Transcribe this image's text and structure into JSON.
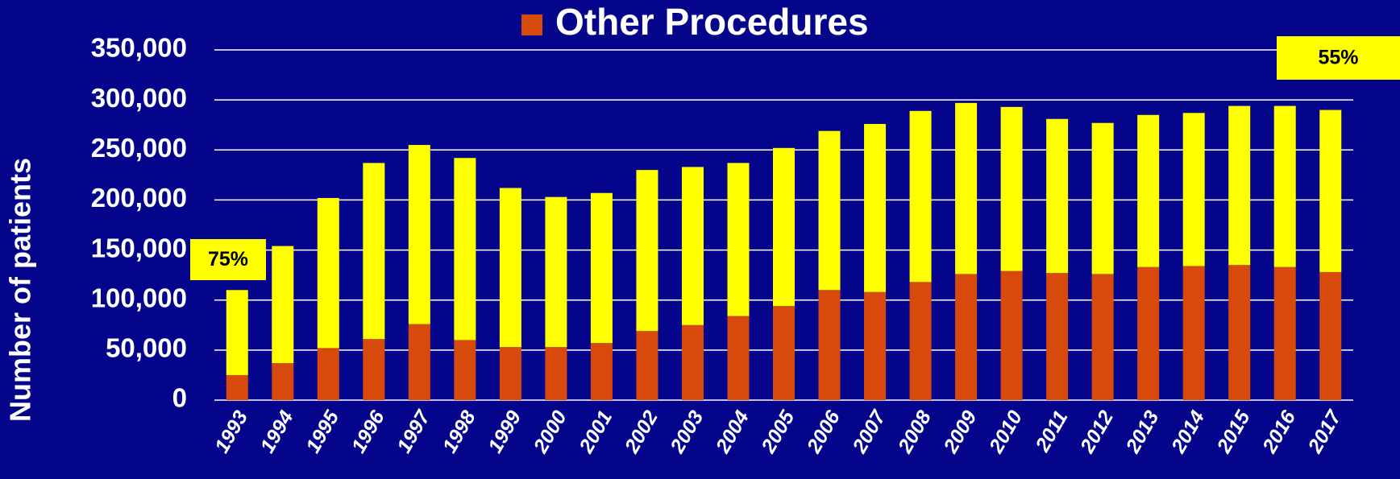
{
  "chart_data": {
    "type": "stacked_bar",
    "y_label": "Number of patients",
    "categories": [
      "1993",
      "1994",
      "1995",
      "1996",
      "1997",
      "1998",
      "1999",
      "2000",
      "2001",
      "2002",
      "2003",
      "2004",
      "2005",
      "2006",
      "2007",
      "2008",
      "2009",
      "2010",
      "2011",
      "2012",
      "2013",
      "2014",
      "2015",
      "2016",
      "2017"
    ],
    "series": [
      {
        "name": "Other Procedures",
        "color": "#d84a0c",
        "values": [
          25000,
          37000,
          52000,
          61000,
          76000,
          60000,
          53000,
          53000,
          57000,
          69000,
          75000,
          84000,
          94000,
          110000,
          108000,
          118000,
          126000,
          129000,
          127000,
          126000,
          133000,
          134000,
          135000,
          133000,
          128000
        ]
      },
      {
        "color": "#ffff00",
        "values": [
          85000,
          117000,
          150000,
          176000,
          179000,
          182000,
          159000,
          150000,
          150000,
          161000,
          158000,
          153000,
          158000,
          159000,
          168000,
          171000,
          171000,
          164000,
          154000,
          151000,
          152000,
          153000,
          159000,
          161000,
          162000
        ]
      }
    ],
    "ylim": [
      0,
      350000
    ],
    "yticks": [
      0,
      {
        "value": 50000,
        "label": "50,000"
      },
      {
        "value": 100000,
        "label": "100,000"
      },
      {
        "value": 150000,
        "label": "150,000"
      },
      {
        "value": 200000,
        "label": "200,000"
      },
      {
        "value": 250000,
        "label": "250,000"
      },
      {
        "value": 300000,
        "label": "300,000"
      },
      {
        "value": 350000,
        "label": "350,000"
      }
    ],
    "grid": true,
    "annotations": [
      {
        "text": "75%"
      },
      {
        "text": "55%"
      }
    ]
  }
}
